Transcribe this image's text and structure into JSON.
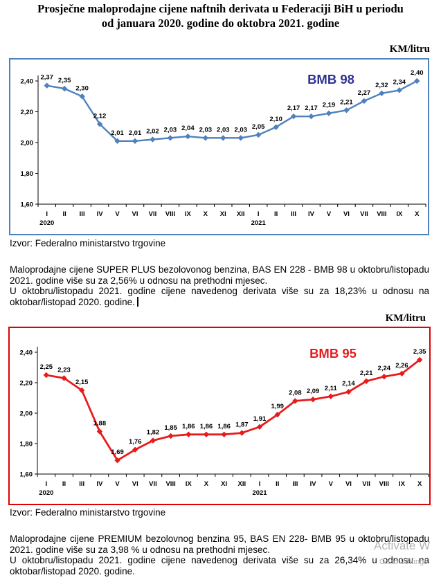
{
  "page": {
    "title_line1": "Prosječne maloprodajne cijene naftnih derivata u Federaciji BiH u periodu",
    "title_line2": "od januara 2020. godine do oktobra 2021. godine",
    "source1": "Izvor: Federalno ministarstvo trgovine",
    "source2": "Izvor: Federalno ministarstvo trgovine",
    "para1_line1": "Maloprodajne cijene SUPER PLUS bezolovonog benzina, BAS EN 228 - BMB 98 u oktobru/listopadu 2021. godine više su za  2,56% u odnosu na prethodni mjesec.",
    "para1_line2": "U oktobru/listopadu 2021. godine cijene navedenog derivata više su za 18,23% u odnosu na oktobar/listopad 2020. godine.",
    "para2_line1": "Maloprodajne cijene PREMIUM bezolovnog benzina 95, BAS EN 228- BMB 95 u oktobru/listopadu 2021. godine više su za 3,98 % u odnosu na prethodni mjesec.",
    "para2_line2": "U oktobru/listopadu 2021. godine cijene navedenog derivata više su za 26,34% u odnosu na oktobar/listopad 2020. godine.",
    "watermark_line1": "Activate W",
    "watermark_line2": "Go to Settings",
    "colors": {
      "bmb98": "#4f81bd",
      "bmb98_frame": "#4f81bd",
      "bmb98_label": "#2e3192",
      "bmb95": "#e81b1b",
      "bmb95_frame": "#e00000"
    }
  },
  "chart_data": [
    {
      "type": "line",
      "title": "BMB 98",
      "unit": "KM/litru",
      "categories": [
        "I",
        "II",
        "III",
        "IV",
        "V",
        "VI",
        "VII",
        "VIII",
        "IX",
        "X",
        "XI",
        "XII",
        "I",
        "II",
        "III",
        "IV",
        "V",
        "VI",
        "VII",
        "VIII",
        "IX",
        "X"
      ],
      "year_labels": [
        "2020",
        "2021"
      ],
      "values": [
        2.37,
        2.35,
        2.3,
        2.12,
        2.01,
        2.01,
        2.02,
        2.03,
        2.04,
        2.03,
        2.03,
        2.03,
        2.05,
        2.1,
        2.17,
        2.17,
        2.19,
        2.21,
        2.27,
        2.32,
        2.34,
        2.4
      ],
      "data_labels": [
        "2,37",
        "2,35",
        "2,30",
        "2,12",
        "2,01",
        "2,01",
        "2,02",
        "2,03",
        "2,04",
        "2,03",
        "2,03",
        "2,03",
        "2,05",
        "2,10",
        "2,17",
        "2,17",
        "2,19",
        "2,21",
        "2,27",
        "2,32",
        "2,34",
        "2,40"
      ],
      "yticks": [
        1.6,
        1.8,
        2.0,
        2.2,
        2.4
      ],
      "ytick_labels": [
        "1,60",
        "1,80",
        "2,00",
        "2,20",
        "2,40"
      ],
      "ylim": [
        1.6,
        2.45
      ],
      "xlabel": "",
      "ylabel": "",
      "grid": false,
      "legend": "none"
    },
    {
      "type": "line",
      "title": "BMB 95",
      "unit": "KM/litru",
      "categories": [
        "I",
        "II",
        "III",
        "IV",
        "V",
        "VI",
        "VII",
        "VIII",
        "IX",
        "X",
        "XI",
        "XII",
        "I",
        "II",
        "III",
        "IV",
        "V",
        "VI",
        "VII",
        "VIII",
        "IX",
        "X"
      ],
      "year_labels": [
        "2020",
        "2021"
      ],
      "values": [
        2.25,
        2.23,
        2.15,
        1.88,
        1.69,
        1.76,
        1.82,
        1.85,
        1.86,
        1.86,
        1.86,
        1.87,
        1.91,
        1.99,
        2.08,
        2.09,
        2.11,
        2.14,
        2.21,
        2.24,
        2.26,
        2.35
      ],
      "data_labels": [
        "2,25",
        "2,23",
        "2,15",
        "1,88",
        "1,69",
        "1,76",
        "1,82",
        "1,85",
        "1,86",
        "1,86",
        "1,86",
        "1,87",
        "1,91",
        "1,99",
        "2,08",
        "2,09",
        "2,11",
        "2,14",
        "2,21",
        "2,24",
        "2,26",
        "2,35"
      ],
      "yticks": [
        1.6,
        1.8,
        2.0,
        2.2,
        2.4
      ],
      "ytick_labels": [
        "1,60",
        "1,80",
        "2,00",
        "2,20",
        "2,40"
      ],
      "ylim": [
        1.6,
        2.45
      ],
      "xlabel": "",
      "ylabel": "",
      "grid": false,
      "legend": "none"
    }
  ]
}
